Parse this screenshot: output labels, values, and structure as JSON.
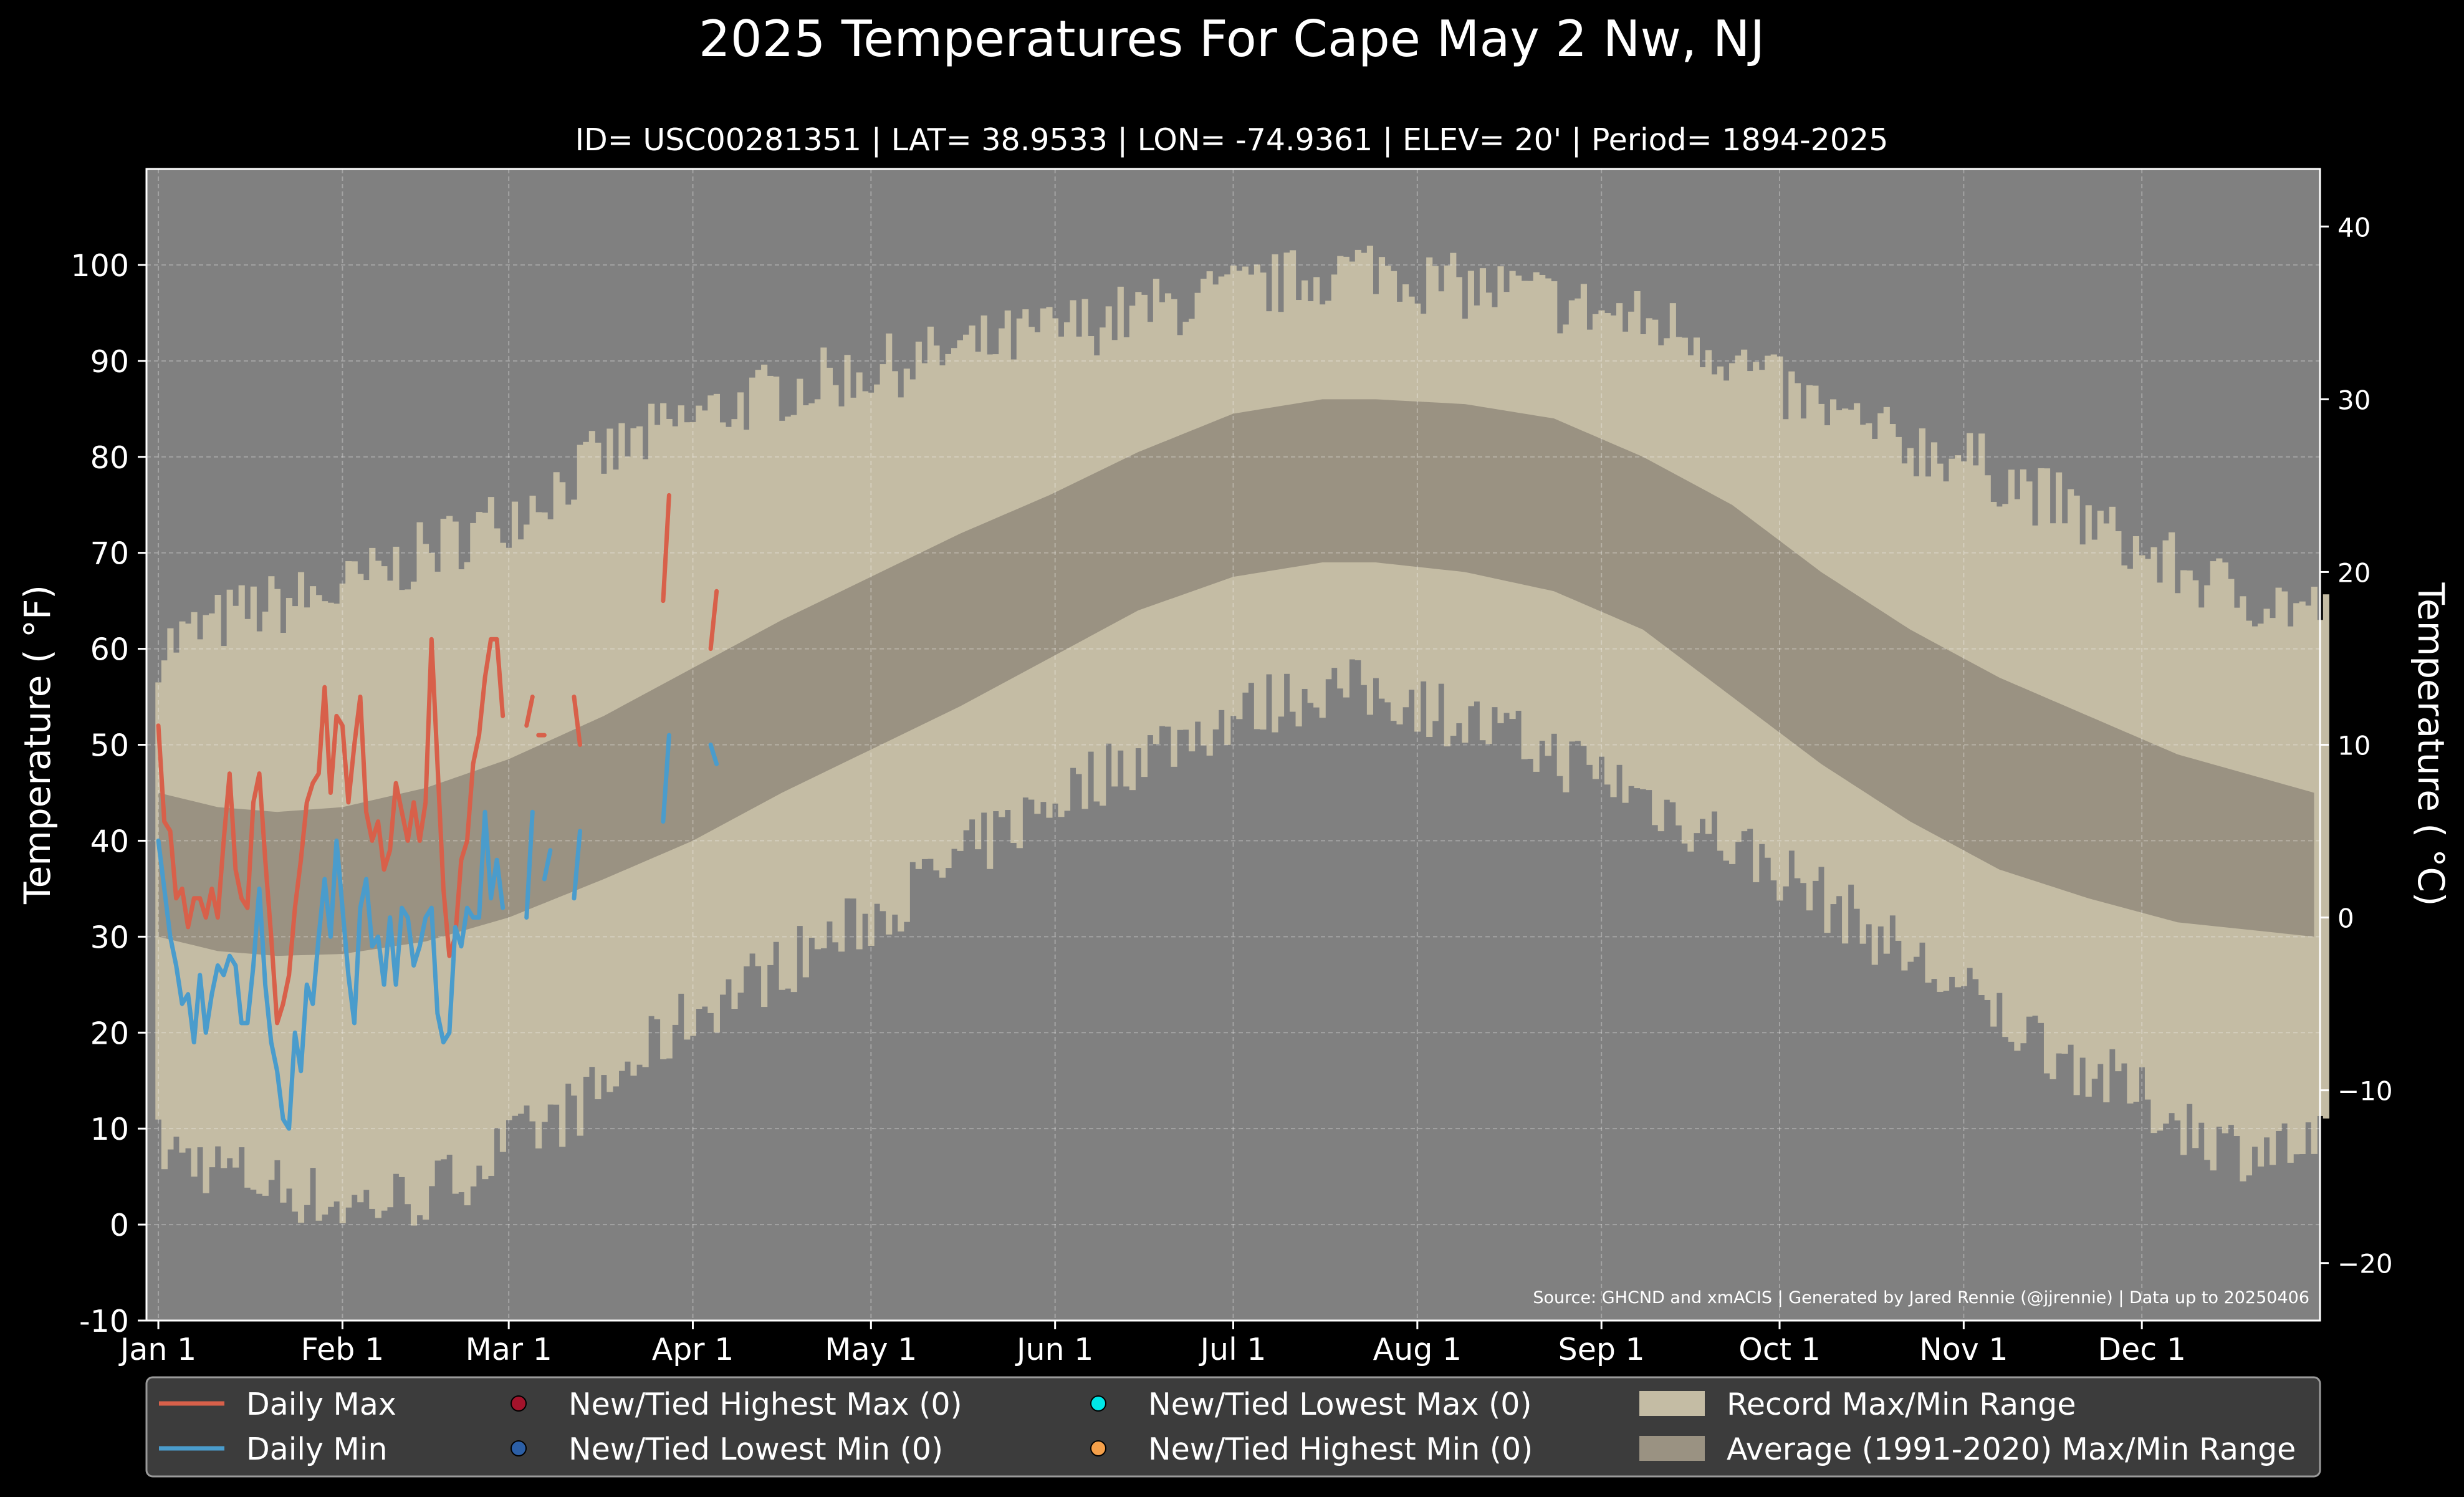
{
  "chart_data": {
    "type": "line",
    "title": "2025 Temperatures For Cape May 2 Nw, NJ",
    "subtitle": "ID= USC00281351 | LAT= 38.9533 | LON= -74.9361 | ELEV= 20' | Period= 1894-2025",
    "ylabel": "Temperature ( °F)",
    "ylabel_right": "Temperature ( °C)",
    "source": "Source: GHCND and xmACIS | Generated by Jared Rennie (@jjrennie) | Data up to 20250406",
    "ylim": [
      -10,
      110
    ],
    "ylim_c": [
      -23.33,
      43.33
    ],
    "xlim": [
      -2,
      364
    ],
    "yticks": [
      -10,
      0,
      10,
      20,
      30,
      40,
      50,
      60,
      70,
      80,
      90,
      100
    ],
    "yticks_c": [
      -20,
      -10,
      0,
      10,
      20,
      30,
      40
    ],
    "x_ticks": [
      {
        "label": "Jan 1",
        "day": 0
      },
      {
        "label": "Feb 1",
        "day": 31
      },
      {
        "label": "Mar 1",
        "day": 59
      },
      {
        "label": "Apr 1",
        "day": 90
      },
      {
        "label": "May 1",
        "day": 120
      },
      {
        "label": "Jun 1",
        "day": 151
      },
      {
        "label": "Jul 1",
        "day": 181
      },
      {
        "label": "Aug 1",
        "day": 212
      },
      {
        "label": "Sep 1",
        "day": 243
      },
      {
        "label": "Oct 1",
        "day": 273
      },
      {
        "label": "Nov 1",
        "day": 304
      },
      {
        "label": "Dec 1",
        "day": 334
      }
    ],
    "grid": true,
    "legend": "bottom",
    "colors": {
      "background": "#000000",
      "plot_bg": "#808080",
      "record_range": "#c4bca4",
      "avg_range": "#9a9282",
      "daily_max": "#d8604a",
      "daily_min": "#4a9ccc",
      "new_high_max": "#a3132b",
      "new_low_min": "#2c5fa6",
      "new_low_max": "#00e8e8",
      "new_high_min": "#f5a04a"
    },
    "record_max_keypoints": [
      [
        0,
        60
      ],
      [
        15,
        64
      ],
      [
        31,
        66
      ],
      [
        45,
        70
      ],
      [
        59,
        74
      ],
      [
        75,
        80
      ],
      [
        90,
        84
      ],
      [
        105,
        87
      ],
      [
        120,
        89
      ],
      [
        135,
        91
      ],
      [
        150,
        93
      ],
      [
        165,
        95
      ],
      [
        181,
        97
      ],
      [
        196,
        99
      ],
      [
        205,
        100
      ],
      [
        215,
        98
      ],
      [
        230,
        97
      ],
      [
        243,
        95
      ],
      [
        258,
        93
      ],
      [
        273,
        87
      ],
      [
        290,
        82
      ],
      [
        304,
        80
      ],
      [
        320,
        75
      ],
      [
        334,
        70
      ],
      [
        349,
        66
      ],
      [
        363,
        64
      ]
    ],
    "record_min_keypoints": [
      [
        0,
        8
      ],
      [
        15,
        5
      ],
      [
        31,
        2
      ],
      [
        45,
        3
      ],
      [
        59,
        8
      ],
      [
        75,
        14
      ],
      [
        90,
        22
      ],
      [
        105,
        27
      ],
      [
        120,
        32
      ],
      [
        135,
        38
      ],
      [
        150,
        44
      ],
      [
        165,
        49
      ],
      [
        181,
        53
      ],
      [
        196,
        56
      ],
      [
        210,
        55
      ],
      [
        230,
        50
      ],
      [
        243,
        47
      ],
      [
        258,
        42
      ],
      [
        273,
        37
      ],
      [
        290,
        30
      ],
      [
        304,
        24
      ],
      [
        320,
        18
      ],
      [
        334,
        13
      ],
      [
        349,
        8
      ],
      [
        363,
        8
      ]
    ],
    "avg_max_keypoints": [
      [
        0,
        45
      ],
      [
        10,
        43.5
      ],
      [
        20,
        43
      ],
      [
        31,
        43.5
      ],
      [
        45,
        45.5
      ],
      [
        59,
        48.5
      ],
      [
        75,
        53
      ],
      [
        90,
        58
      ],
      [
        105,
        63
      ],
      [
        120,
        67.5
      ],
      [
        135,
        72
      ],
      [
        150,
        76
      ],
      [
        165,
        80.5
      ],
      [
        181,
        84.5
      ],
      [
        196,
        86
      ],
      [
        205,
        86
      ],
      [
        220,
        85.5
      ],
      [
        235,
        84
      ],
      [
        250,
        80
      ],
      [
        265,
        75
      ],
      [
        280,
        68
      ],
      [
        295,
        62
      ],
      [
        310,
        57
      ],
      [
        325,
        53
      ],
      [
        340,
        49
      ],
      [
        363,
        45
      ]
    ],
    "avg_min_keypoints": [
      [
        0,
        30
      ],
      [
        10,
        28.5
      ],
      [
        20,
        28
      ],
      [
        31,
        28.2
      ],
      [
        45,
        29.5
      ],
      [
        59,
        32
      ],
      [
        75,
        36
      ],
      [
        90,
        40
      ],
      [
        105,
        45
      ],
      [
        120,
        49.5
      ],
      [
        135,
        54
      ],
      [
        150,
        59
      ],
      [
        165,
        64
      ],
      [
        181,
        67.5
      ],
      [
        196,
        69
      ],
      [
        205,
        69
      ],
      [
        220,
        68
      ],
      [
        235,
        66
      ],
      [
        250,
        62
      ],
      [
        265,
        55
      ],
      [
        280,
        48
      ],
      [
        295,
        42
      ],
      [
        310,
        37
      ],
      [
        325,
        34
      ],
      [
        340,
        31.5
      ],
      [
        363,
        30
      ]
    ],
    "series": [
      {
        "name": "Daily Max",
        "x": [
          0,
          1,
          2,
          3,
          4,
          5,
          6,
          7,
          8,
          9,
          10,
          11,
          12,
          13,
          14,
          15,
          16,
          17,
          18,
          19,
          20,
          21,
          22,
          23,
          24,
          25,
          26,
          27,
          28,
          29,
          30,
          31,
          32,
          33,
          34,
          35,
          36,
          37,
          38,
          39,
          40,
          41,
          42,
          43,
          44,
          45,
          46,
          47,
          48,
          49,
          50,
          51,
          52,
          53,
          54,
          55,
          56,
          57,
          58
        ],
        "values": [
          52,
          42,
          41,
          34,
          35,
          31,
          34,
          34,
          32,
          35,
          32,
          40,
          47,
          37,
          34,
          33,
          44,
          47,
          38,
          30,
          21,
          23,
          26,
          33,
          38,
          44,
          46,
          47,
          56,
          45,
          53,
          52,
          44,
          50,
          55,
          43,
          40,
          42,
          37,
          39,
          46,
          43,
          40,
          44,
          40,
          44,
          61,
          48,
          35,
          28,
          30,
          38,
          40,
          48,
          51,
          57,
          61,
          61,
          53
        ]
      },
      {
        "name": "Daily Min",
        "x": [
          0,
          1,
          2,
          3,
          4,
          5,
          6,
          7,
          8,
          9,
          10,
          11,
          12,
          13,
          14,
          15,
          16,
          17,
          18,
          19,
          20,
          21,
          22,
          23,
          24,
          25,
          26,
          27,
          28,
          29,
          30,
          31,
          32,
          33,
          34,
          35,
          36,
          37,
          38,
          39,
          40,
          41,
          42,
          43,
          44,
          45,
          46,
          47,
          48,
          49,
          50,
          51,
          52,
          53,
          54,
          55,
          56,
          57,
          58
        ],
        "values": [
          40,
          35,
          30,
          27,
          23,
          24,
          19,
          26,
          20,
          24,
          27,
          26,
          28,
          27,
          21,
          21,
          27,
          35,
          25,
          19,
          16,
          11,
          10,
          20,
          16,
          25,
          23,
          30,
          36,
          30,
          40,
          33,
          26,
          21,
          33,
          36,
          29,
          30,
          25,
          32,
          25,
          33,
          32,
          27,
          29,
          32,
          33,
          22,
          19,
          20,
          31,
          29,
          33,
          32,
          32,
          43,
          34,
          38,
          33
        ]
      },
      {
        "name": "Daily Max (segments)",
        "segments": [
          {
            "x": [
              62,
              63
            ],
            "values": [
              52,
              55
            ]
          },
          {
            "x": [
              64,
              65
            ],
            "values": [
              51,
              51
            ]
          },
          {
            "x": [
              70,
              71
            ],
            "values": [
              55,
              50
            ]
          },
          {
            "x": [
              85,
              86
            ],
            "values": [
              65,
              76
            ]
          },
          {
            "x": [
              93,
              94
            ],
            "values": [
              60,
              66
            ]
          }
        ]
      },
      {
        "name": "Daily Min (segments)",
        "segments": [
          {
            "x": [
              62,
              63
            ],
            "values": [
              32,
              43
            ]
          },
          {
            "x": [
              65,
              66
            ],
            "values": [
              36,
              39
            ]
          },
          {
            "x": [
              70,
              71
            ],
            "values": [
              34,
              41
            ]
          },
          {
            "x": [
              85,
              86
            ],
            "values": [
              42,
              51
            ]
          },
          {
            "x": [
              93,
              94
            ],
            "values": [
              50,
              48
            ]
          }
        ]
      }
    ],
    "legend_items": [
      {
        "label": "Daily Max",
        "kind": "line",
        "color": "#d8604a"
      },
      {
        "label": "Daily Min",
        "kind": "line",
        "color": "#4a9ccc"
      },
      {
        "label": "New/Tied Highest Max (0)",
        "kind": "dot",
        "color": "#a3132b"
      },
      {
        "label": "New/Tied Lowest Min (0)",
        "kind": "dot",
        "color": "#2c5fa6"
      },
      {
        "label": "New/Tied Lowest Max (0)",
        "kind": "dot",
        "color": "#00e8e8"
      },
      {
        "label": "New/Tied Highest Min (0)",
        "kind": "dot",
        "color": "#f5a04a"
      },
      {
        "label": "Record Max/Min Range",
        "kind": "patch",
        "color": "#c4bca4"
      },
      {
        "label": "Average (1991-2020) Max/Min Range",
        "kind": "patch",
        "color": "#9a9282"
      }
    ]
  }
}
